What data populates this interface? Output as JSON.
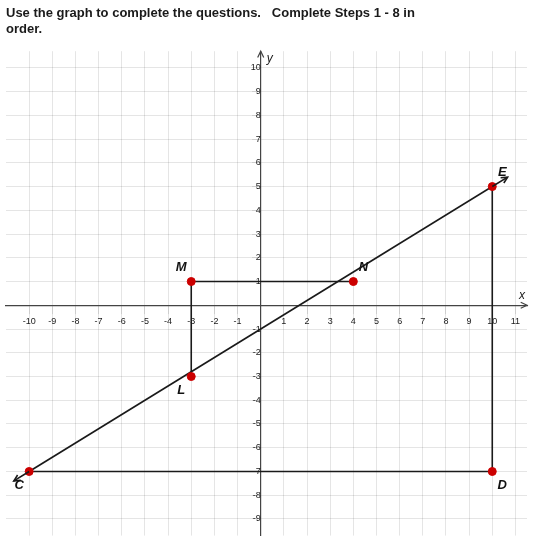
{
  "chart_data": {
    "type": "scatter",
    "title": [
      "Use the graph to complete the questions.   Complete Steps 1 - 8 in",
      "order."
    ],
    "x_label": "x",
    "y_label": "y",
    "xlim": [
      -11,
      11.5
    ],
    "ylim": [
      -9.7,
      10.7
    ],
    "xticks": [
      -10,
      -9,
      -8,
      -7,
      -6,
      -5,
      -4,
      -3,
      -2,
      -1,
      1,
      2,
      3,
      4,
      5,
      6,
      7,
      8,
      9,
      10,
      11
    ],
    "yticks": [
      -9,
      -8,
      -7,
      -6,
      -5,
      -4,
      -3,
      -2,
      -1,
      1,
      2,
      3,
      4,
      5,
      6,
      7,
      8,
      9,
      10
    ],
    "grid": true,
    "points": {
      "labels": [
        "C",
        "D",
        "E",
        "M",
        "N",
        "L"
      ],
      "x": [
        -10,
        10,
        10,
        -3,
        4,
        -3
      ],
      "y": [
        -7,
        -7,
        5,
        1,
        1,
        -3
      ],
      "color": "#cc0000"
    },
    "lines": [
      {
        "x": [
          -10,
          10
        ],
        "y": [
          -7,
          5
        ],
        "color": "#1a1a1a",
        "line_style": "arrow"
      },
      {
        "x": [
          -3,
          4
        ],
        "y": [
          1,
          1
        ],
        "color": "#1a1a1a",
        "line_style": "solid"
      },
      {
        "x": [
          -3,
          -3
        ],
        "y": [
          1,
          -3
        ],
        "color": "#1a1a1a",
        "line_style": "solid"
      },
      {
        "x": [
          -10,
          10
        ],
        "y": [
          -7,
          -7
        ],
        "color": "#1a1a1a",
        "line_style": "solid"
      },
      {
        "x": [
          10,
          10
        ],
        "y": [
          -7,
          5
        ],
        "color": "#1a1a1a",
        "line_style": "solid"
      }
    ]
  }
}
